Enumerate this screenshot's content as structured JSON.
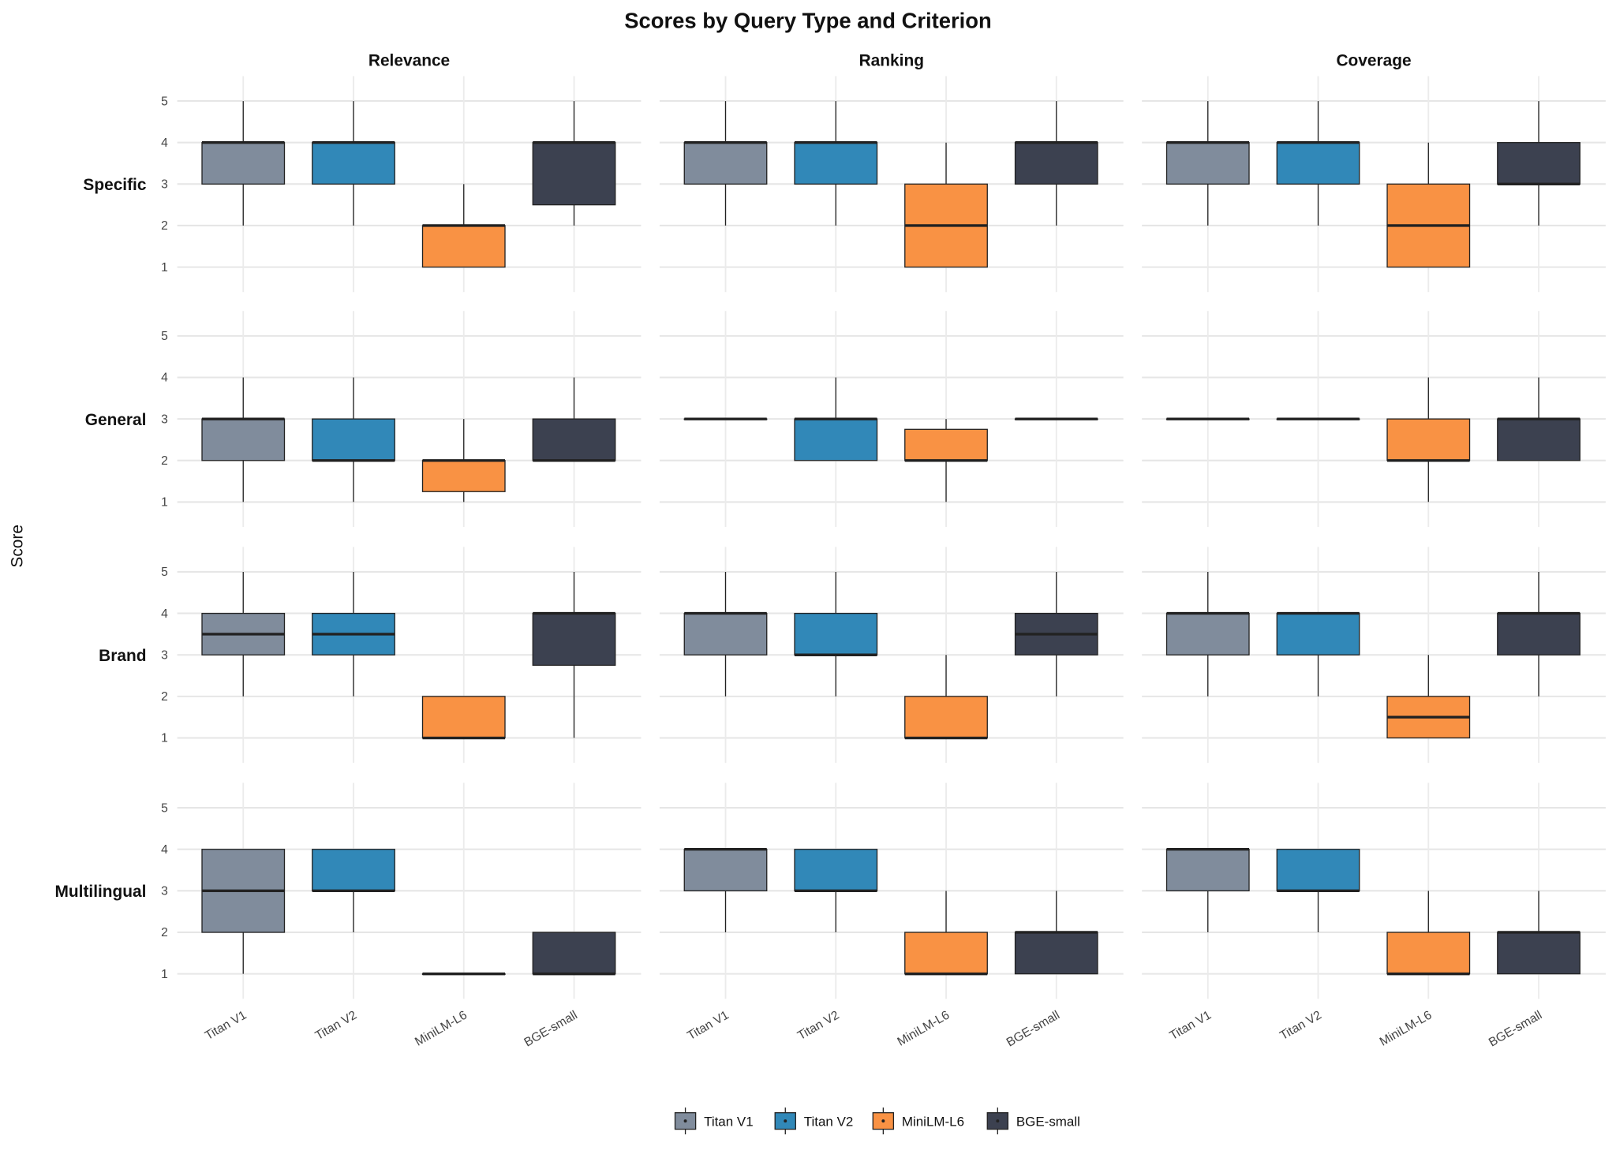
{
  "chart_data": {
    "type": "boxplot",
    "title": "Scores by Query Type and Criterion",
    "ylabel": "Score",
    "xlabel": "",
    "ylim": [
      0.5,
      5.5
    ],
    "yticks": [
      1,
      2,
      3,
      4,
      5
    ],
    "grid": true,
    "legend_position": "bottom",
    "columns": [
      "Relevance",
      "Ranking",
      "Coverage"
    ],
    "rows": [
      "Specific",
      "General",
      "Brand",
      "Multilingual"
    ],
    "models": [
      "Titan V1",
      "Titan V2",
      "MiniLM-L6",
      "BGE-small"
    ],
    "colors": {
      "Titan V1": "#808c9c",
      "Titan V2": "#3188b8",
      "MiniLM-L6": "#f99244",
      "BGE-small": "#3c4150"
    },
    "box_stats_order": [
      "whisker_low",
      "q1",
      "median",
      "q3",
      "whisker_high"
    ],
    "panels": {
      "Specific": {
        "Relevance": {
          "Titan V1": [
            2,
            3,
            4,
            4,
            5
          ],
          "Titan V2": [
            2,
            3,
            4,
            4,
            5
          ],
          "MiniLM-L6": [
            1,
            1,
            2,
            2,
            3
          ],
          "BGE-small": [
            2,
            2.5,
            4,
            4,
            5
          ]
        },
        "Ranking": {
          "Titan V1": [
            2,
            3,
            4,
            4,
            5
          ],
          "Titan V2": [
            2,
            3,
            4,
            4,
            5
          ],
          "MiniLM-L6": [
            1,
            1,
            2,
            3,
            4
          ],
          "BGE-small": [
            2,
            3,
            4,
            4,
            5
          ]
        },
        "Coverage": {
          "Titan V1": [
            2,
            3,
            4,
            4,
            5
          ],
          "Titan V2": [
            2,
            3,
            4,
            4,
            5
          ],
          "MiniLM-L6": [
            1,
            1,
            2,
            3,
            4
          ],
          "BGE-small": [
            2,
            3,
            3,
            4,
            5
          ]
        }
      },
      "General": {
        "Relevance": {
          "Titan V1": [
            1,
            2,
            3,
            3,
            4
          ],
          "Titan V2": [
            1,
            2,
            2,
            3,
            4
          ],
          "MiniLM-L6": [
            1,
            1.25,
            2,
            2,
            3
          ],
          "BGE-small": [
            2,
            2,
            2,
            3,
            4
          ]
        },
        "Ranking": {
          "Titan V1": [
            3,
            3,
            3,
            3,
            3
          ],
          "Titan V2": [
            2,
            2,
            3,
            3,
            4
          ],
          "MiniLM-L6": [
            1,
            2,
            2,
            2.75,
            3
          ],
          "BGE-small": [
            3,
            3,
            3,
            3,
            3
          ]
        },
        "Coverage": {
          "Titan V1": [
            3,
            3,
            3,
            3,
            3
          ],
          "Titan V2": [
            3,
            3,
            3,
            3,
            3
          ],
          "MiniLM-L6": [
            1,
            2,
            2,
            3,
            4
          ],
          "BGE-small": [
            2,
            2,
            3,
            3,
            4
          ]
        }
      },
      "Brand": {
        "Relevance": {
          "Titan V1": [
            2,
            3,
            3.5,
            4,
            5
          ],
          "Titan V2": [
            2,
            3,
            3.5,
            4,
            5
          ],
          "MiniLM-L6": [
            1,
            1,
            1,
            2,
            2
          ],
          "BGE-small": [
            1,
            2.75,
            4,
            4,
            5
          ]
        },
        "Ranking": {
          "Titan V1": [
            2,
            3,
            4,
            4,
            5
          ],
          "Titan V2": [
            2,
            3,
            3,
            4,
            5
          ],
          "MiniLM-L6": [
            1,
            1,
            1,
            2,
            3
          ],
          "BGE-small": [
            2,
            3,
            3.5,
            4,
            5
          ]
        },
        "Coverage": {
          "Titan V1": [
            2,
            3,
            4,
            4,
            5
          ],
          "Titan V2": [
            2,
            3,
            4,
            4,
            4
          ],
          "MiniLM-L6": [
            1,
            1,
            1.5,
            2,
            3
          ],
          "BGE-small": [
            2,
            3,
            4,
            4,
            5
          ]
        }
      },
      "Multilingual": {
        "Relevance": {
          "Titan V1": [
            1,
            2,
            3,
            4,
            4
          ],
          "Titan V2": [
            2,
            3,
            3,
            4,
            4
          ],
          "MiniLM-L6": [
            1,
            1,
            1,
            1,
            1
          ],
          "BGE-small": [
            1,
            1,
            1,
            2,
            2
          ]
        },
        "Ranking": {
          "Titan V1": [
            2,
            3,
            4,
            4,
            4
          ],
          "Titan V2": [
            2,
            3,
            3,
            4,
            4
          ],
          "MiniLM-L6": [
            1,
            1,
            1,
            2,
            3
          ],
          "BGE-small": [
            1,
            1,
            2,
            2,
            3
          ]
        },
        "Coverage": {
          "Titan V1": [
            2,
            3,
            4,
            4,
            4
          ],
          "Titan V2": [
            2,
            3,
            3,
            4,
            4
          ],
          "MiniLM-L6": [
            1,
            1,
            1,
            2,
            3
          ],
          "BGE-small": [
            1,
            1,
            2,
            2,
            3
          ]
        }
      }
    }
  }
}
